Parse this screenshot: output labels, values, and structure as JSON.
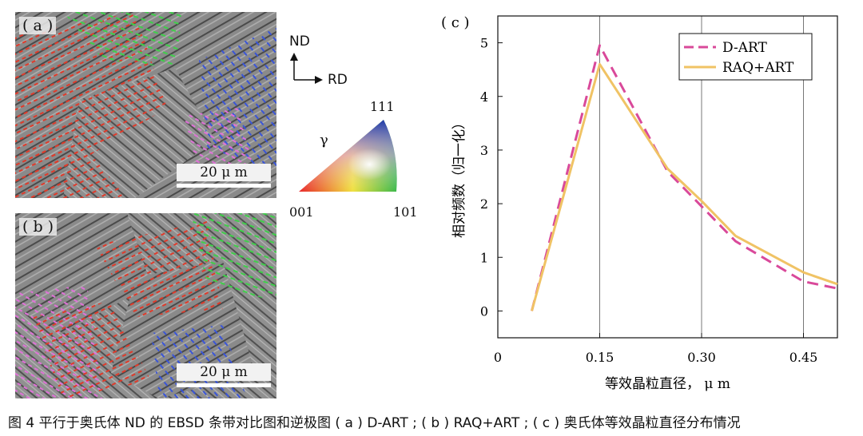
{
  "panels": {
    "a": {
      "label": "( a )",
      "scale_bar": "20 μ m"
    },
    "b": {
      "label": "( b )",
      "scale_bar": "20 μ m"
    }
  },
  "axes": {
    "nd": "ND",
    "rd": "RD"
  },
  "ipf": {
    "phase": "γ",
    "c111": "111",
    "c001": "001",
    "c101": "101"
  },
  "chart_panel_label": "( c )",
  "chart_data": {
    "type": "line",
    "xlabel": "等效晶粒直径， μ m",
    "ylabel": "相对频数（归一化）",
    "xlim": [
      0,
      0.5
    ],
    "ylim": [
      -0.5,
      5.5
    ],
    "x_ticks": [
      "0",
      "0.15",
      "0.30",
      "0.45"
    ],
    "x_tick_values": [
      0,
      0.15,
      0.3,
      0.45
    ],
    "y_ticks": [
      "0",
      "1",
      "2",
      "3",
      "4",
      "5"
    ],
    "y_tick_values": [
      0,
      1,
      2,
      3,
      4,
      5
    ],
    "grid": "vertical",
    "legend": "top-right",
    "series": [
      {
        "name": "D-ART",
        "color": "#d9499a",
        "dash": true,
        "x": [
          0.05,
          0.15,
          0.25,
          0.3,
          0.35,
          0.45,
          0.5
        ],
        "y": [
          0.0,
          4.95,
          2.6,
          1.95,
          1.3,
          0.55,
          0.42
        ]
      },
      {
        "name": "RAQ+ART",
        "color": "#f0c365",
        "dash": false,
        "x": [
          0.05,
          0.15,
          0.25,
          0.3,
          0.35,
          0.45,
          0.5
        ],
        "y": [
          0.0,
          4.6,
          2.65,
          2.05,
          1.4,
          0.72,
          0.5
        ]
      }
    ]
  },
  "caption": "图 4 平行于奥氏体 ND 的 EBSD 条带对比图和逆极图 ( a ) D-ART ; ( b ) RAQ+ART ; ( c ) 奥氏体等效晶粒直径分布情况"
}
